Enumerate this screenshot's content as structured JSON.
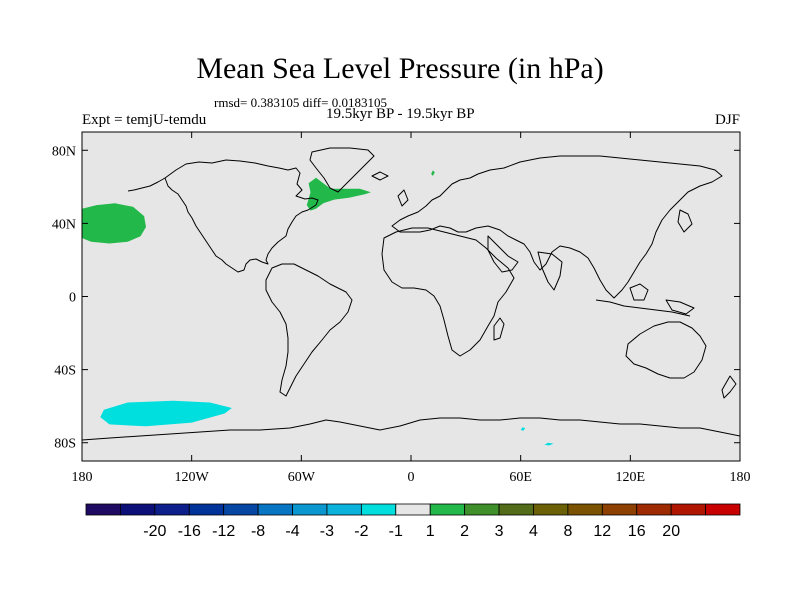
{
  "title": "Mean Sea Level Pressure (in hPa)",
  "stats": "rmsd= 0.383105 diff= 0.0183105",
  "subtitle": "19.5kyr BP - 19.5kyr BP",
  "experiment": "Expt = temjU-temdu",
  "season": "DJF",
  "map": {
    "background_color": "#e6e6e6",
    "lat_ticks": [
      {
        "value": 80,
        "label": "80N"
      },
      {
        "value": 40,
        "label": "40N"
      },
      {
        "value": 0,
        "label": "0"
      },
      {
        "value": -40,
        "label": "40S"
      },
      {
        "value": -80,
        "label": "80S"
      }
    ],
    "lon_ticks": [
      {
        "value": -180,
        "label": "180"
      },
      {
        "value": -120,
        "label": "120W"
      },
      {
        "value": -60,
        "label": "60W"
      },
      {
        "value": 0,
        "label": "0"
      },
      {
        "value": 60,
        "label": "60E"
      },
      {
        "value": 120,
        "label": "120E"
      },
      {
        "value": 180,
        "label": "180"
      }
    ],
    "anomalies": [
      {
        "name": "north-pacific-positive",
        "color": "#22b84a",
        "bin": "1 to 2",
        "points": [
          [
            -180,
            32
          ],
          [
            -175,
            30
          ],
          [
            -165,
            29
          ],
          [
            -155,
            30
          ],
          [
            -148,
            33
          ],
          [
            -145,
            38
          ],
          [
            -146,
            44
          ],
          [
            -152,
            49
          ],
          [
            -162,
            51
          ],
          [
            -172,
            50
          ],
          [
            -180,
            48
          ]
        ]
      },
      {
        "name": "north-atlantic-positive",
        "color": "#22b84a",
        "bin": "1 to 2",
        "points": [
          [
            -57,
            50
          ],
          [
            -55,
            57
          ],
          [
            -56,
            62
          ],
          [
            -52,
            65
          ],
          [
            -48,
            62
          ],
          [
            -44,
            59
          ],
          [
            -36,
            59
          ],
          [
            -28,
            59
          ],
          [
            -22,
            57
          ],
          [
            -25,
            56
          ],
          [
            -34,
            54
          ],
          [
            -42,
            53
          ],
          [
            -48,
            51
          ],
          [
            -52,
            48
          ],
          [
            -55,
            47
          ]
        ]
      },
      {
        "name": "scandinavia-positive",
        "color": "#22b84a",
        "bin": "1 to 2",
        "points": [
          [
            11,
            67
          ],
          [
            12,
            69
          ],
          [
            13,
            68
          ],
          [
            12,
            66
          ]
        ]
      },
      {
        "name": "southern-pacific-negative",
        "color": "#00dede",
        "bin": "-2 to -1",
        "points": [
          [
            -170,
            -66
          ],
          [
            -168,
            -62
          ],
          [
            -155,
            -58
          ],
          [
            -130,
            -57
          ],
          [
            -110,
            -58
          ],
          [
            -98,
            -61
          ],
          [
            -102,
            -64
          ],
          [
            -120,
            -69
          ],
          [
            -145,
            -71
          ],
          [
            -165,
            -70
          ]
        ]
      },
      {
        "name": "antarctic-negative-1",
        "color": "#00dede",
        "bin": "-2 to -1",
        "points": [
          [
            60,
            -73
          ],
          [
            61,
            -71.5
          ],
          [
            62.5,
            -72
          ],
          [
            61.5,
            -73.5
          ]
        ]
      },
      {
        "name": "antarctic-negative-2",
        "color": "#00dede",
        "bin": "-2 to -1",
        "points": [
          [
            73,
            -81
          ],
          [
            75,
            -80
          ],
          [
            78,
            -80.5
          ],
          [
            75.5,
            -81.5
          ]
        ]
      }
    ]
  },
  "colorbar": {
    "colors": [
      "#1f0a62",
      "#0d0f78",
      "#0c1f8a",
      "#003399",
      "#0747a4",
      "#0875c2",
      "#0a96ce",
      "#0ab2dc",
      "#00dede",
      "#e6e6e6",
      "#22b84a",
      "#3f8f2b",
      "#526c19",
      "#6b6006",
      "#7a5200",
      "#8d4000",
      "#9e2b00",
      "#b01500",
      "#c80000"
    ],
    "labels": [
      "-20",
      "-16",
      "-12",
      "-8",
      "-4",
      "-3",
      "-2",
      "-1",
      "1",
      "2",
      "3",
      "4",
      "8",
      "12",
      "16",
      "20"
    ]
  }
}
